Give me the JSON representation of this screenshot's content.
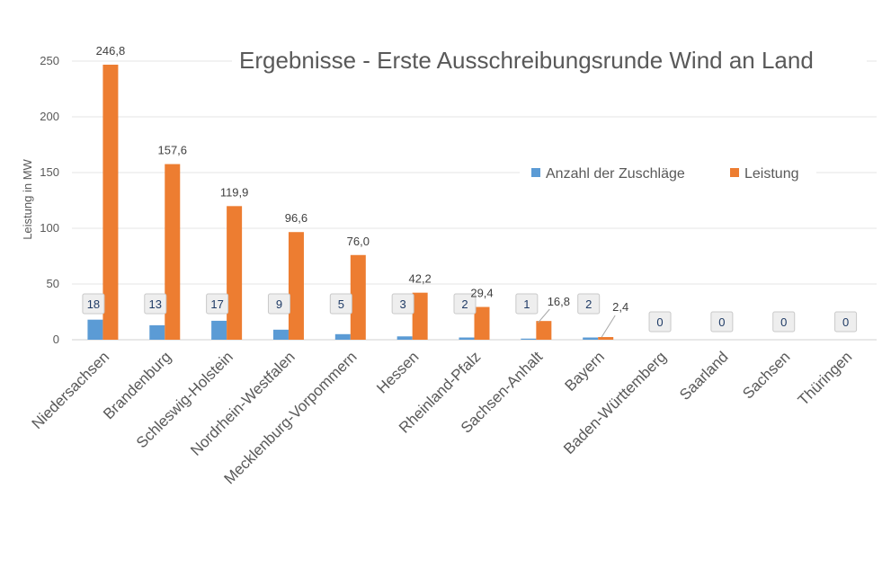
{
  "chart_data": {
    "type": "bar",
    "title": "Ergebnisse - Erste Ausschreibungsrunde Wind an Land",
    "xlabel": "",
    "ylabel": "Leistung in MW",
    "ylim": [
      0,
      250
    ],
    "yticks": [
      0,
      50,
      100,
      150,
      200,
      250
    ],
    "grid": true,
    "legend_position": "right",
    "categories": [
      "Niedersachsen",
      "Brandenburg",
      "Schleswig-Holstein",
      "Nordrhein-Westfalen",
      "Mecklenburg-Vorpommern",
      "Hessen",
      "Rheinland-Pfalz",
      "Sachsen-Anhalt",
      "Bayern",
      "Baden-Württemberg",
      "Saarland",
      "Sachsen",
      "Thüringen"
    ],
    "series": [
      {
        "name": "Anzahl der Zuschläge",
        "color": "#5B9BD5",
        "values": [
          18,
          13,
          17,
          9,
          5,
          3,
          2,
          1,
          2,
          0,
          0,
          0,
          0
        ],
        "labels": [
          "18",
          "13",
          "17",
          "9",
          "5",
          "3",
          "2",
          "1",
          "2",
          "0",
          "0",
          "0",
          "0"
        ]
      },
      {
        "name": "Leistung",
        "color": "#ED7D31",
        "values": [
          246.8,
          157.6,
          119.9,
          96.6,
          76.0,
          42.2,
          29.4,
          16.8,
          2.4,
          null,
          null,
          null,
          null
        ],
        "labels": [
          "246,8",
          "157,6",
          "119,9",
          "96,6",
          "76,0",
          "42,2",
          "29,4",
          "16,8",
          "2,4",
          "",
          "",
          "",
          ""
        ]
      }
    ]
  }
}
